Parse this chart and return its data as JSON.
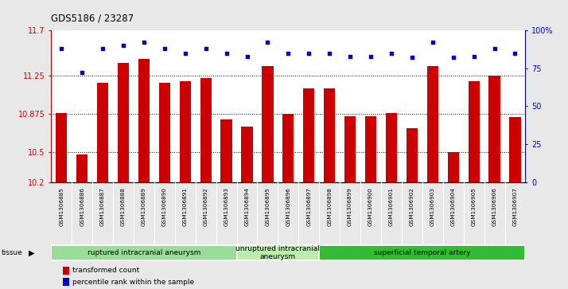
{
  "title": "GDS5186 / 23287",
  "samples": [
    "GSM1306885",
    "GSM1306886",
    "GSM1306887",
    "GSM1306888",
    "GSM1306889",
    "GSM1306890",
    "GSM1306891",
    "GSM1306892",
    "GSM1306893",
    "GSM1306894",
    "GSM1306895",
    "GSM1306896",
    "GSM1306897",
    "GSM1306898",
    "GSM1306899",
    "GSM1306900",
    "GSM1306901",
    "GSM1306902",
    "GSM1306903",
    "GSM1306904",
    "GSM1306905",
    "GSM1306906",
    "GSM1306907"
  ],
  "bar_values": [
    10.88,
    10.47,
    11.18,
    11.38,
    11.42,
    11.18,
    11.2,
    11.23,
    10.82,
    10.75,
    11.35,
    10.875,
    11.13,
    11.13,
    10.85,
    10.85,
    10.88,
    10.73,
    11.35,
    10.5,
    11.2,
    11.25,
    10.84
  ],
  "percentile_values": [
    88,
    72,
    88,
    90,
    92,
    88,
    85,
    88,
    85,
    83,
    92,
    85,
    85,
    85,
    83,
    83,
    85,
    82,
    92,
    82,
    83,
    88,
    85
  ],
  "ylim_left": [
    10.2,
    11.7
  ],
  "ylim_right": [
    0,
    100
  ],
  "yticks_left": [
    10.2,
    10.5,
    10.875,
    11.25,
    11.7
  ],
  "yticks_right": [
    0,
    25,
    50,
    75,
    100
  ],
  "bar_color": "#cc0000",
  "dot_color": "#0000cc",
  "plot_bg_color": "#ffffff",
  "tick_bg_color": "#cccccc",
  "fig_bg_color": "#e8e8e8",
  "groups": [
    {
      "label": "ruptured intracranial aneurysm",
      "start": 0,
      "end": 9,
      "color": "#99dd99"
    },
    {
      "label": "unruptured intracranial\naneurysm",
      "start": 9,
      "end": 13,
      "color": "#bbeeaa"
    },
    {
      "label": "superficial temporal artery",
      "start": 13,
      "end": 23,
      "color": "#33bb33"
    }
  ],
  "dotted_lines": [
    10.5,
    10.875,
    11.25
  ],
  "legend_bar_label": "transformed count",
  "legend_dot_label": "percentile rank within the sample"
}
